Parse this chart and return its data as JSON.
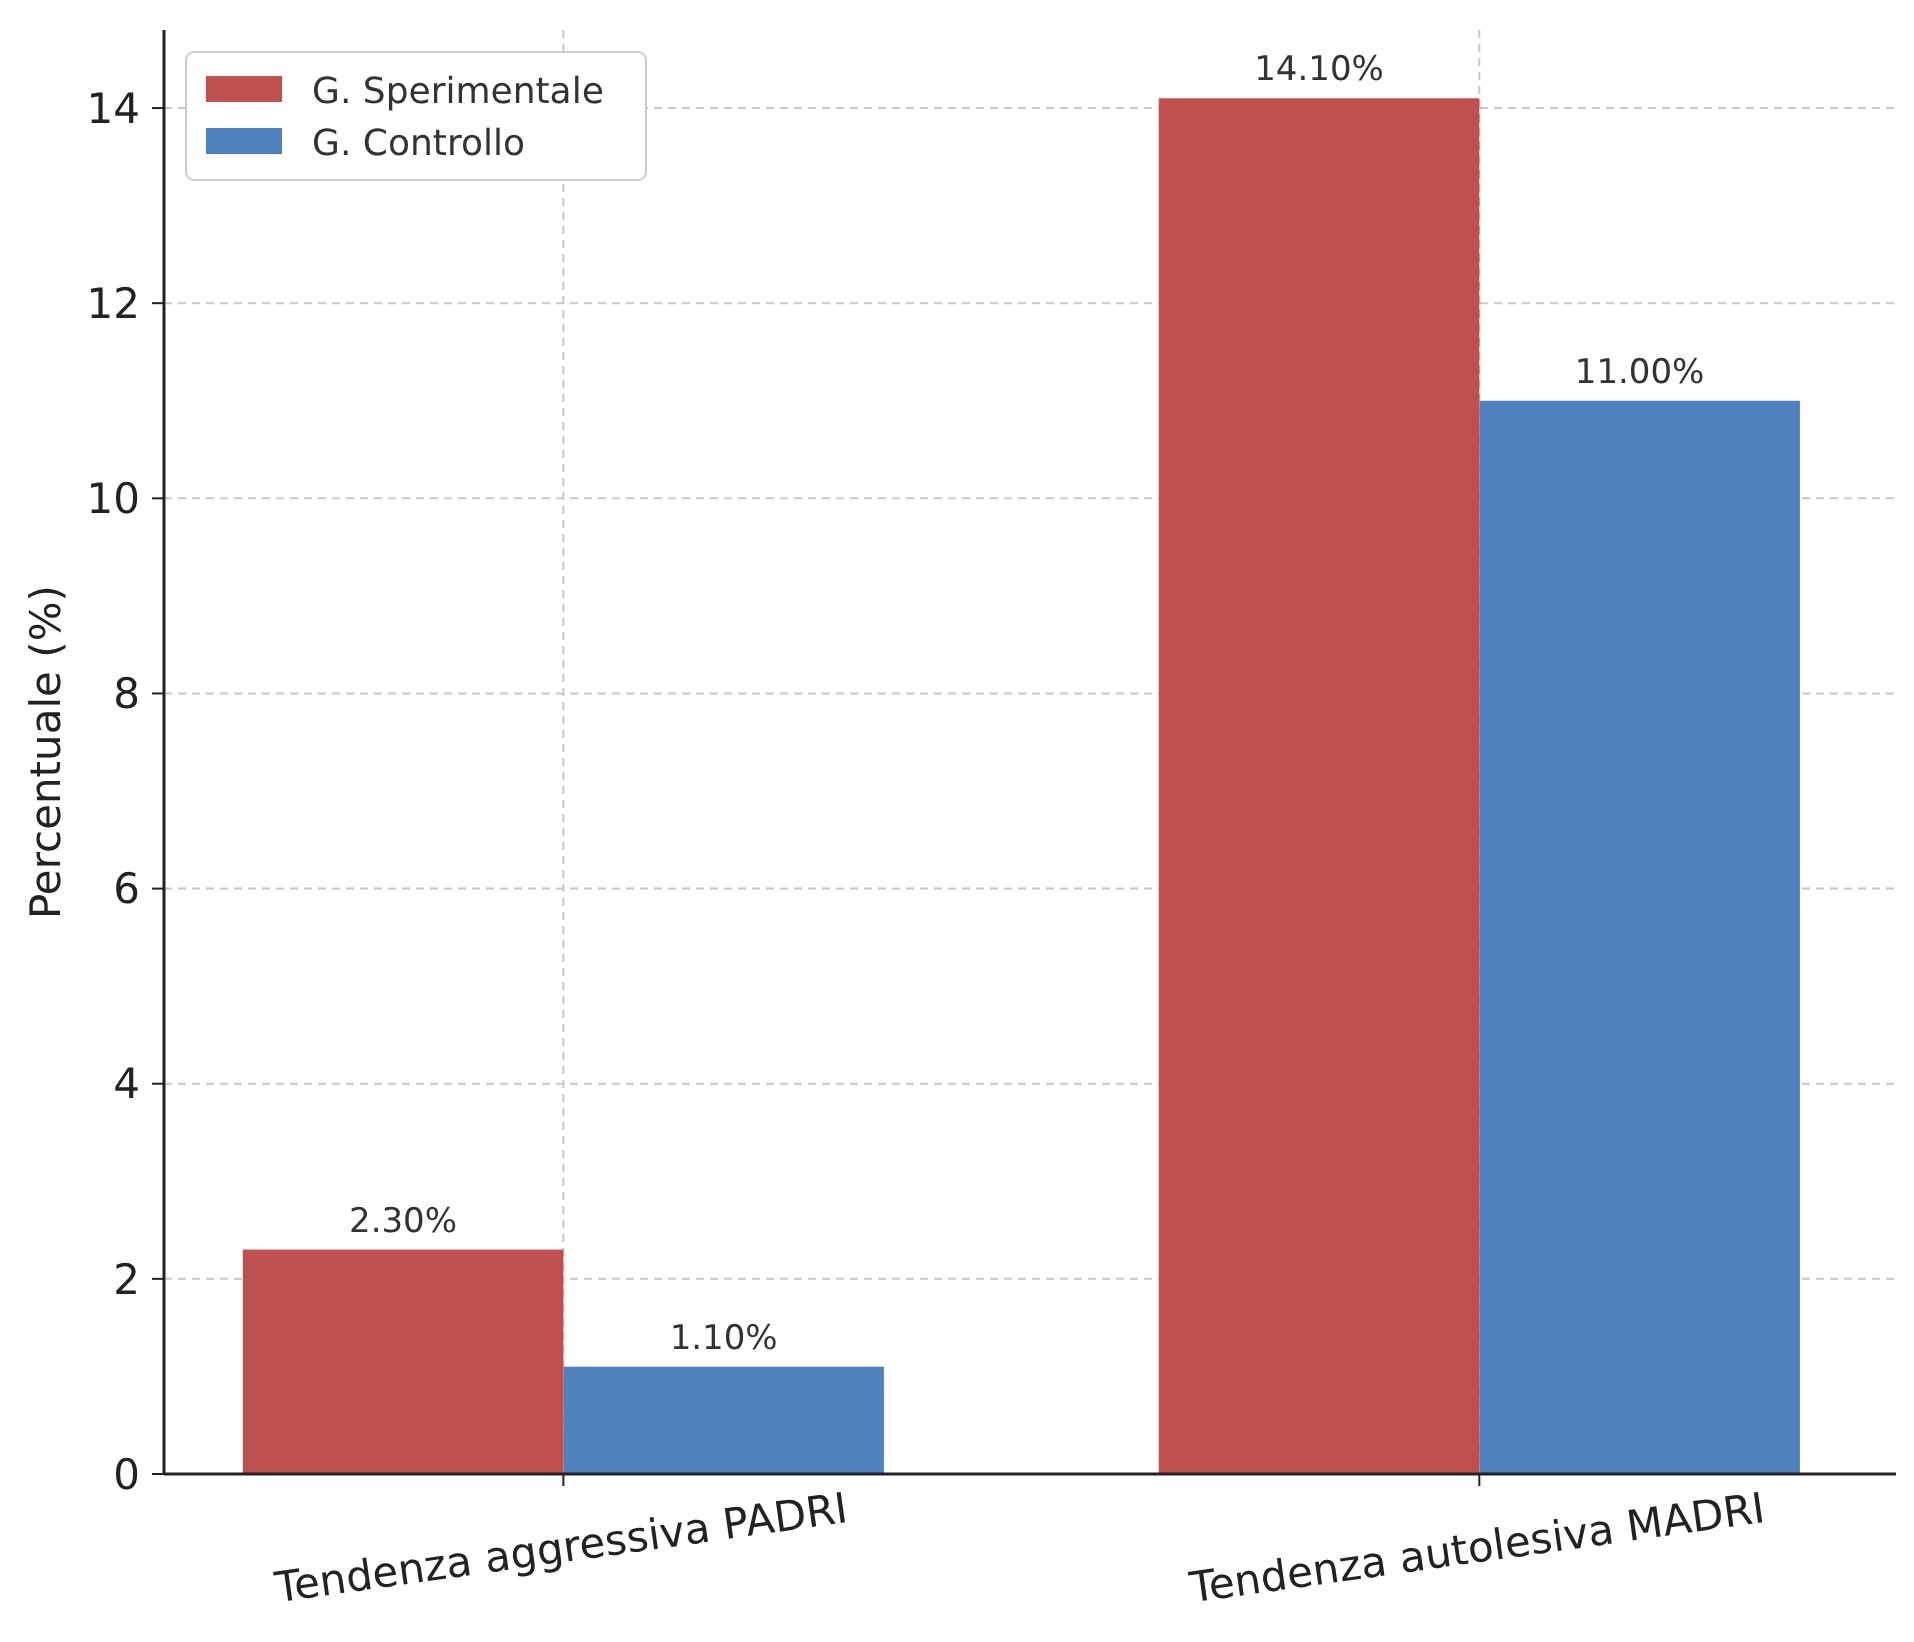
{
  "chart_data": {
    "type": "bar",
    "ylabel": "Percentuale (%)",
    "categories": [
      "Tendenza aggressiva PADRI",
      "Tendenza autolesiva MADRI"
    ],
    "series": [
      {
        "name": "G. Sperimentale",
        "color": "#c0504d",
        "values": [
          2.3,
          14.1
        ],
        "value_labels": [
          "2.30%",
          "14.10%"
        ]
      },
      {
        "name": "G. Controllo",
        "color": "#4f81bd",
        "values": [
          1.1,
          11.0
        ],
        "value_labels": [
          "1.10%",
          "11.00%"
        ]
      }
    ],
    "ylim": [
      0,
      14.8
    ],
    "yticks": [
      0,
      2,
      4,
      6,
      8,
      10,
      12,
      14
    ],
    "grid": true,
    "legend": "top left"
  }
}
